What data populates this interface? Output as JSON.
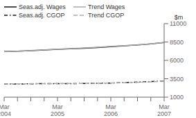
{
  "chart_data": {
    "type": "line",
    "ylabel": "$m",
    "categories": [
      "Mar\n2004",
      null,
      null,
      null,
      "Mar\n2005",
      null,
      null,
      null,
      "Mar\n2006",
      null,
      null,
      null,
      "Mar\n2007"
    ],
    "series": [
      {
        "name": "Seas.adj. Wages",
        "color": "#111111",
        "line_style": "solid",
        "values": [
          7200,
          7250,
          7320,
          7420,
          7500,
          7580,
          7650,
          7750,
          7870,
          7980,
          8100,
          8250,
          8430
        ]
      },
      {
        "name": "Trend Wages",
        "color": "#aaaaaa",
        "line_style": "solid",
        "values": [
          7180,
          7250,
          7340,
          7440,
          7530,
          7610,
          7700,
          7800,
          7900,
          8000,
          8100,
          8250,
          8430
        ]
      },
      {
        "name": "Seas.adj. CGOP",
        "color": "#111111",
        "line_style": "dashdot",
        "values": [
          2800,
          2790,
          2820,
          2840,
          2850,
          2830,
          2870,
          2890,
          2920,
          2980,
          3050,
          3120,
          3200
        ]
      },
      {
        "name": "Trend CGOP",
        "color": "#aaaaaa",
        "line_style": "dashed",
        "values": [
          2800,
          2810,
          2830,
          2845,
          2855,
          2860,
          2875,
          2895,
          2920,
          2960,
          3010,
          3080,
          3180
        ]
      }
    ],
    "ylim": [
      1000,
      11000
    ],
    "yticks": [
      1000,
      3500,
      6000,
      8500,
      11000
    ],
    "legend": "upper left",
    "grid": false
  }
}
